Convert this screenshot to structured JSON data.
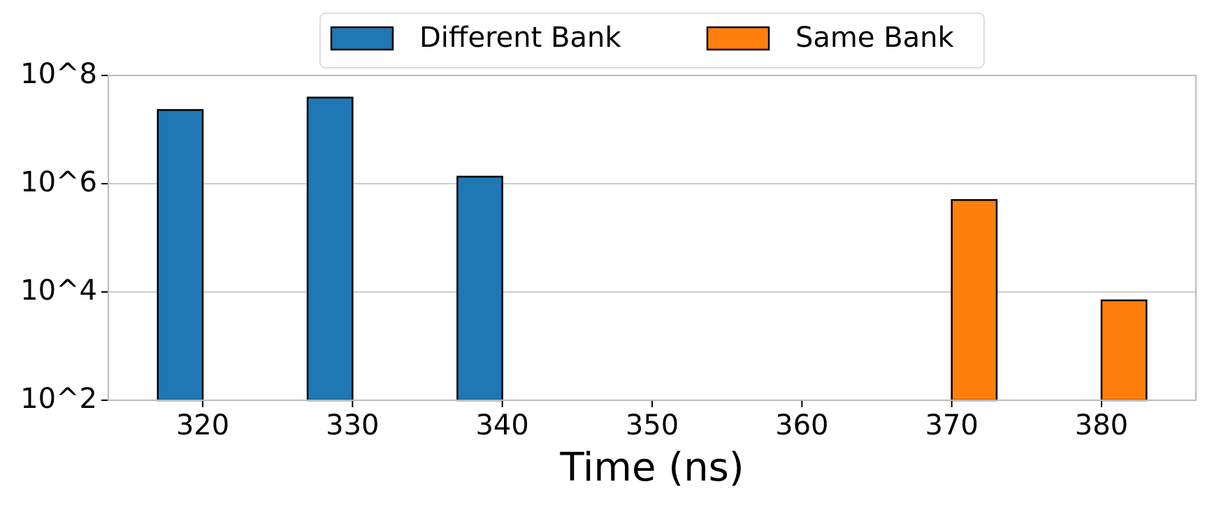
{
  "chart_data": {
    "type": "bar",
    "x_label": "Time (ns)",
    "x": [
      320,
      330,
      340,
      350,
      360,
      370,
      380
    ],
    "series": [
      {
        "name": "Different Bank",
        "color": "#1f77b4",
        "values": [
          23000000,
          39000000,
          1350000,
          null,
          null,
          null,
          null
        ]
      },
      {
        "name": "Same Bank",
        "color": "#ff7f0e",
        "values": [
          null,
          null,
          null,
          null,
          null,
          500000,
          7000
        ]
      }
    ],
    "xlim": [
      313.7,
      386.3
    ],
    "xticks": [
      320,
      330,
      340,
      350,
      360,
      370,
      380
    ],
    "ylim": [
      100,
      100000000
    ],
    "log_y": true,
    "yticks": [
      {
        "value": 100,
        "label": "10^2"
      },
      {
        "value": 10000,
        "label": "10^4"
      },
      {
        "value": 1000000,
        "label": "10^6"
      },
      {
        "value": 100000000,
        "label": "10^8"
      }
    ],
    "grid": true,
    "legend": "top"
  }
}
